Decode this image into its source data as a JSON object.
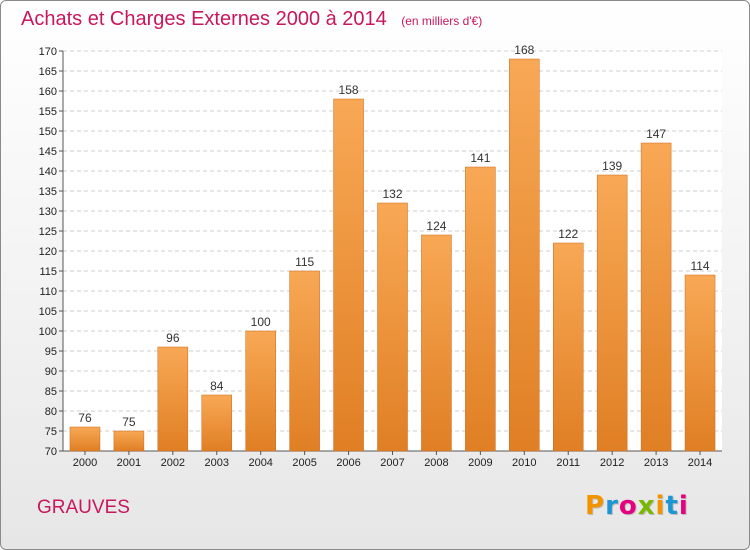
{
  "header": {
    "title": "Achats et Charges Externes 2000 à 2014",
    "unit": "(en milliers d'€)"
  },
  "commune": "GRAUVES",
  "brand": {
    "letters": [
      "P",
      "r",
      "o",
      "x",
      "i",
      "t",
      "i"
    ],
    "colors": [
      "#f29400",
      "#1e96d6",
      "#e6007e",
      "#7ab800",
      "#f29400",
      "#1e96d6",
      "#e6007e"
    ]
  },
  "colors": {
    "bar_light": "#f8a855",
    "bar_dark": "#e07f24",
    "bar_edge": "#c8691a",
    "grid": "#cfcfcf"
  },
  "chart_data": {
    "type": "bar",
    "title": "Achats et Charges Externes 2000 à 2014",
    "xlabel": "",
    "ylabel": "",
    "categories": [
      "2000",
      "2001",
      "2002",
      "2003",
      "2004",
      "2005",
      "2006",
      "2007",
      "2008",
      "2009",
      "2010",
      "2011",
      "2012",
      "2013",
      "2014"
    ],
    "values": [
      76,
      75,
      96,
      84,
      100,
      115,
      158,
      132,
      124,
      141,
      168,
      122,
      139,
      147,
      114
    ],
    "ylim": [
      70,
      170
    ],
    "ytick_step": 5,
    "grid": true,
    "legend": "none"
  }
}
